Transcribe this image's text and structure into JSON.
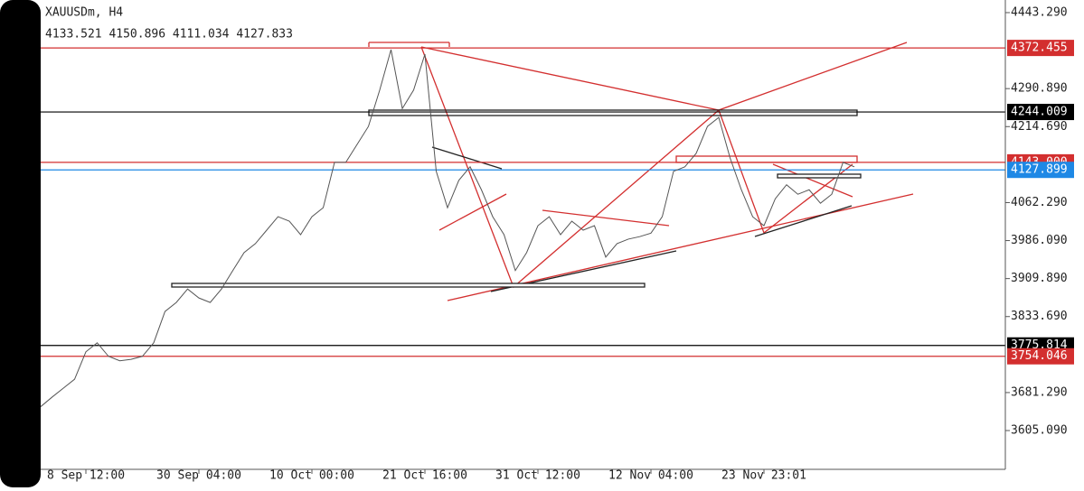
{
  "chart_data": {
    "type": "line",
    "symbol": "XAUUSDm, H4",
    "ohlc": "4133.521 4150.896 4111.034 4127.833",
    "categories": [
      null,
      null,
      null,
      null,
      "8 Sep 12:00",
      null,
      null,
      null,
      null,
      null,
      null,
      null,
      null,
      null,
      "30 Sep 04:00",
      null,
      null,
      null,
      null,
      null,
      null,
      null,
      null,
      null,
      "10 Oct 00:00",
      null,
      null,
      null,
      null,
      null,
      null,
      null,
      null,
      null,
      "21 Oct 16:00",
      null,
      null,
      null,
      null,
      null,
      null,
      null,
      null,
      null,
      "31 Oct 12:00",
      null,
      null,
      null,
      null,
      null,
      null,
      null,
      null,
      null,
      "12 Nov 04:00",
      null,
      null,
      null,
      null,
      null,
      null,
      null,
      null,
      null,
      "23 Nov 23:01",
      null,
      null,
      null,
      null,
      null,
      null,
      null,
      null
    ],
    "values": [
      3653,
      3672,
      3690,
      3708,
      3763,
      3781,
      3754,
      3745,
      3748,
      3754,
      3781,
      3844,
      3862,
      3889,
      3871,
      3862,
      3889,
      3926,
      3962,
      3980,
      4007,
      4034,
      4025,
      3998,
      4034,
      4052,
      4143,
      4143,
      4179,
      4215,
      4288,
      4369,
      4251,
      4288,
      4360,
      4125,
      4052,
      4107,
      4134,
      4088,
      4034,
      3998,
      3926,
      3962,
      4016,
      4034,
      3998,
      4025,
      4007,
      4016,
      3953,
      3980,
      3989,
      3994,
      4001,
      4034,
      4125,
      4134,
      4161,
      4215,
      4233,
      4152,
      4088,
      4034,
      4016,
      4070,
      4098,
      4079,
      4088,
      4061,
      4079,
      4143,
      4134
    ],
    "color": "#555555",
    "ylim": [
      3527.3,
      4468.6
    ],
    "yticks": [
      {
        "value": 4443.29,
        "label": "4443.290"
      },
      {
        "value": 4290.89,
        "label": "4290.890"
      },
      {
        "value": 4214.69,
        "label": "4214.690"
      },
      {
        "value": 4062.29,
        "label": "4062.290"
      },
      {
        "value": 3986.09,
        "label": "3986.090"
      },
      {
        "value": 3909.89,
        "label": "3909.890"
      },
      {
        "value": 3833.69,
        "label": "3833.690"
      },
      {
        "value": 3681.29,
        "label": "3681.290"
      },
      {
        "value": 3605.09,
        "label": "3605.090"
      }
    ],
    "levels": [
      {
        "value": 4372.455,
        "label": "4372.455",
        "color": "#d32f2f"
      },
      {
        "value": 4244.009,
        "label": "4244.009",
        "color": "#000000"
      },
      {
        "value": 4143.0,
        "label": "4143.000",
        "color": "#d32f2f"
      },
      {
        "value": 4127.899,
        "label": "4127.899",
        "color": "#1e88e5"
      },
      {
        "value": 3775.814,
        "label": "3775.814",
        "color": "#000000"
      },
      {
        "value": 3754.046,
        "label": "3754.046",
        "color": "#d32f2f"
      }
    ]
  }
}
